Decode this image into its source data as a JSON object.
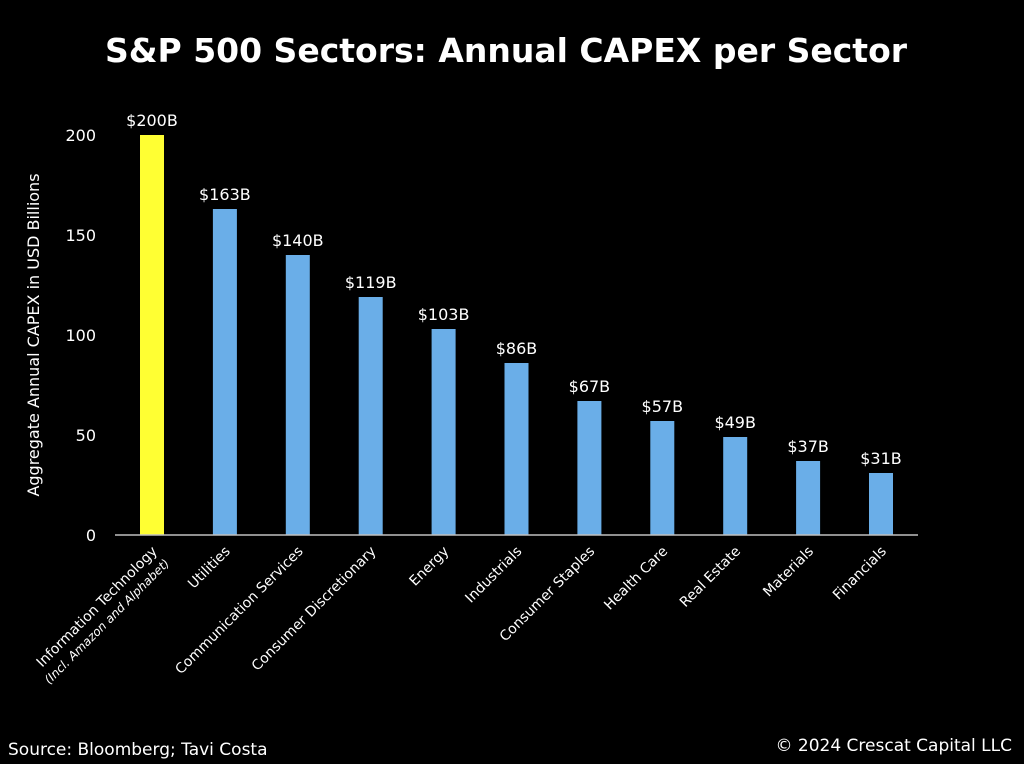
{
  "chart_data": {
    "type": "bar",
    "title": "S&P 500 Sectors: Annual CAPEX per Sector",
    "xlabel": "",
    "ylabel": "Aggregate Annual CAPEX in USD Billions",
    "ylim": [
      0,
      200
    ],
    "yticks": [
      0,
      50,
      100,
      150,
      200
    ],
    "grid": false,
    "categories": [
      "Information Technology",
      "Utilities",
      "Communication Services",
      "Consumer Discretionary",
      "Energy",
      "Industrials",
      "Consumer Staples",
      "Health Care",
      "Real Estate",
      "Materials",
      "Financials"
    ],
    "category_sublabels": [
      "(Incl. Amazon and Alphabet)",
      "",
      "",
      "",
      "",
      "",
      "",
      "",
      "",
      "",
      ""
    ],
    "values": [
      200,
      163,
      140,
      119,
      103,
      86,
      67,
      57,
      49,
      37,
      31
    ],
    "data_labels": [
      "$200B",
      "$163B",
      "$140B",
      "$119B",
      "$103B",
      "$86B",
      "$67B",
      "$57B",
      "$49B",
      "$37B",
      "$31B"
    ],
    "colors": {
      "highlight": "#ffff33",
      "default": "#6aaee8",
      "background": "#000000",
      "text": "#ffffff"
    },
    "highlight_index": 0
  },
  "footer": {
    "source": "Source: Bloomberg; Tavi Costa",
    "copyright": "© 2024 Crescat Capital LLC"
  }
}
